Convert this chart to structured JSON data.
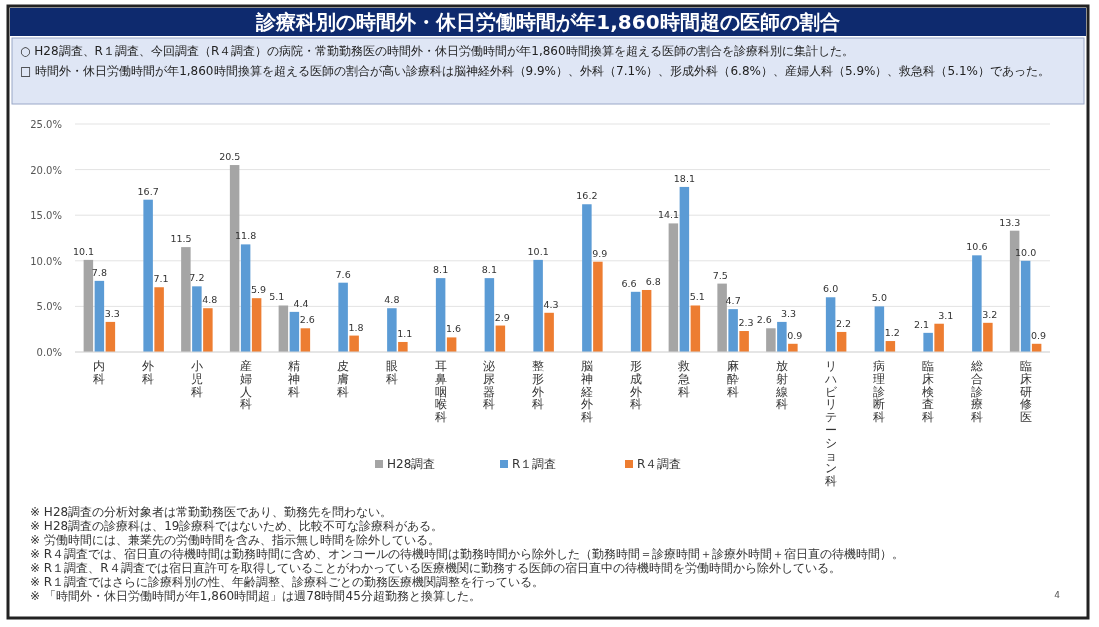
{
  "chart_data": {
    "type": "bar",
    "title": "診療科別の時間外・休日労働時間が年1,860時間超の医師の割合",
    "subtitle": "○ H28調査、R１調査、今回調査（R４調査）の病院・常勤勤務医の時間外・休日労働時間が年1,860時間換算を超える医師の割合を診療科別に集計した。\n□ 時間外・休日労働時間が年1,860時間換算を超える医師の割合が高い診療科は脳神経外科（9.9%）、外科（7.1%）、形成外科（6.8%）、産婦人科（5.9%）、救急科（5.1%）であった。",
    "categories": [
      "内科",
      "外科",
      "小児科",
      "産婦人科",
      "精神科",
      "皮膚科",
      "眼科",
      "耳鼻咽喉科",
      "泌尿器科",
      "整形外科",
      "脳神経外科",
      "形成外科",
      "救急科",
      "麻酔科",
      "放射線科",
      "リハビリテーション科",
      "病理診断科",
      "臨床検査科",
      "総合診療科",
      "臨床研修医"
    ],
    "series": [
      {
        "name": "H28調査",
        "color": "#a5a5a5",
        "values": [
          10.1,
          null,
          11.5,
          20.5,
          5.1,
          null,
          null,
          null,
          null,
          null,
          null,
          null,
          14.1,
          7.5,
          2.6,
          null,
          null,
          null,
          null,
          13.3
        ],
        "value_labels": [
          "10.1",
          null,
          "11.5",
          "20.5",
          "5.1",
          null,
          null,
          null,
          null,
          null,
          null,
          null,
          "14.1",
          "7.5",
          "2.6",
          null,
          null,
          null,
          null,
          "13.3"
        ]
      },
      {
        "name": "R１調査",
        "color": "#5b9bd5",
        "values": [
          7.8,
          16.7,
          7.2,
          11.8,
          4.4,
          7.6,
          4.8,
          8.1,
          8.1,
          10.1,
          16.2,
          6.6,
          18.1,
          4.7,
          3.3,
          6.0,
          5.0,
          2.1,
          10.6,
          10.0
        ],
        "value_labels": [
          "7.8",
          "16.7",
          "7.2",
          "11.8",
          "4.4",
          "7.6",
          "4.8",
          "8.1",
          "8.1",
          "10.1",
          "16.2",
          "6.6",
          "18.1",
          "4.7",
          "3.3",
          "6.0",
          "5.0",
          "2.1",
          "10.6",
          "10.0"
        ]
      },
      {
        "name": "R４調査",
        "color": "#ed7d31",
        "values": [
          3.3,
          7.1,
          4.8,
          5.9,
          2.6,
          1.8,
          1.1,
          1.6,
          2.9,
          4.3,
          9.9,
          6.8,
          5.1,
          2.3,
          0.9,
          2.2,
          1.2,
          3.1,
          3.2,
          0.9
        ],
        "value_labels": [
          "3.3",
          "7.1",
          "4.8",
          "5.9",
          "2.6",
          "1.8",
          "1.1",
          "1.6",
          "2.9",
          "4.3",
          "9.9",
          "6.8",
          "5.1",
          "2.3",
          "0.9",
          "2.2",
          "1.2",
          "3.1",
          "3.2",
          "0.9"
        ]
      }
    ],
    "ylim": [
      0,
      25
    ],
    "yticks": [
      {
        "value": 0,
        "label": "0.0%"
      },
      {
        "value": 5,
        "label": "5.0%"
      },
      {
        "value": 10,
        "label": "10.0%"
      },
      {
        "value": 15,
        "label": "15.0%"
      },
      {
        "value": 20,
        "label": "20.0%"
      },
      {
        "value": 25,
        "label": "25.0%"
      }
    ],
    "grid": "y",
    "legend": "bottom",
    "annotations": [
      "※ H28調査の分析対象者は常勤勤務医であり、勤務先を問わない。",
      "※ H28調査の診療科は、19診療科ではないため、比較不可な診療科がある。",
      "※ 労働時間には、兼業先の労働時間を含み、指示無し時間を除外している。",
      "※ R４調査では、宿日直の待機時間は勤務時間に含め、オンコールの待機時間は勤務時間から除外した（勤務時間＝診療時間＋診療外時間＋宿日直の待機時間）。",
      "※ R１調査、R４調査では宿日直許可を取得していることがわかっている医療機関に勤務する医師の宿日直中の待機時間を労働時間から除外している。",
      "※ R１調査ではさらに診療科別の性、年齢調整、診療科ごとの勤務医療機関調整を行っている。",
      "※ 「時間外・休日労働時間が年1,860時間超」は週78時間45分超勤務と換算した。",
      "4"
    ]
  }
}
